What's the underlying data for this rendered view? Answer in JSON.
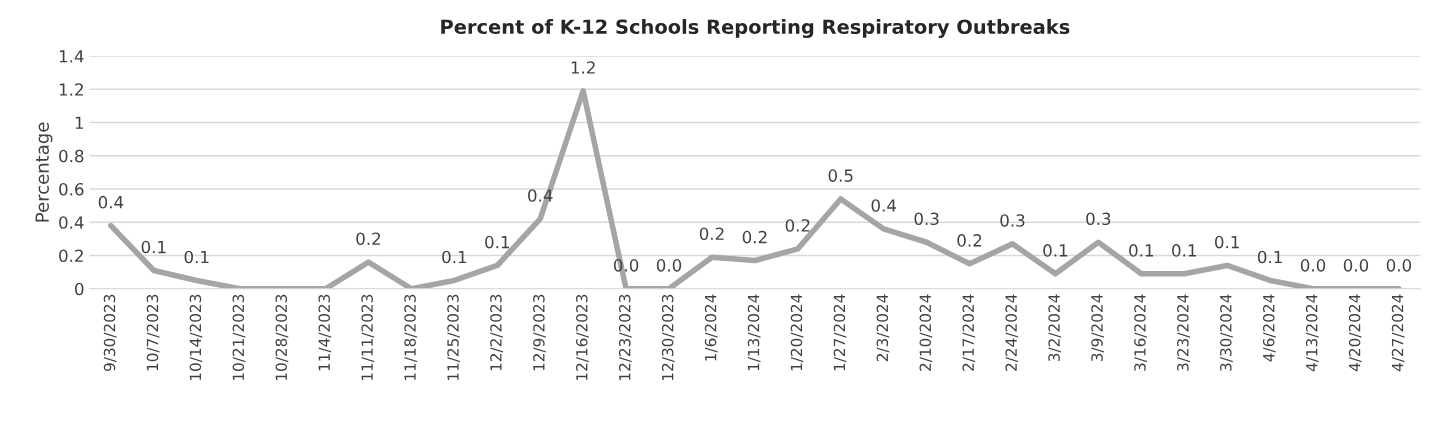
{
  "chart_data": {
    "type": "line",
    "title": "Percent of K-12 Schools Reporting Respiratory Outbreaks",
    "ylabel": "Percentage",
    "categories": [
      "9/30/2023",
      "10/7/2023",
      "10/14/2023",
      "10/21/2023",
      "10/28/2023",
      "11/4/2023",
      "11/11/2023",
      "11/18/2023",
      "11/25/2023",
      "12/2/2023",
      "12/9/2023",
      "12/16/2023",
      "12/23/2023",
      "12/30/2023",
      "1/6/2024",
      "1/13/2024",
      "1/20/2024",
      "1/27/2024",
      "2/3/2024",
      "2/10/2024",
      "2/17/2024",
      "2/24/2024",
      "3/2/2024",
      "3/9/2024",
      "3/16/2024",
      "3/23/2024",
      "3/30/2024",
      "4/6/2024",
      "4/13/2024",
      "4/20/2024",
      "4/27/2024"
    ],
    "series": [
      {
        "color": "#a5a5a5",
        "values": [
          0.38,
          0.11,
          0.05,
          0,
          0,
          0,
          0.16,
          0,
          0.05,
          0.14,
          0.42,
          1.19,
          0,
          0,
          0.19,
          0.17,
          0.24,
          0.54,
          0.36,
          0.28,
          0.15,
          0.27,
          0.09,
          0.28,
          0.09,
          0.09,
          0.14,
          0.05,
          0,
          0,
          0
        ],
        "value_labels": [
          "0.4",
          "0.1",
          "0.1",
          null,
          null,
          null,
          "0.2",
          null,
          "0.1",
          "0.1",
          "0.4",
          "1.2",
          "0.0",
          "0.0",
          "0.2",
          "0.2",
          "0.2",
          "0.5",
          "0.4",
          "0.3",
          "0.2",
          "0.3",
          "0.1",
          "0.3",
          "0.1",
          "0.1",
          "0.1",
          "0.1",
          "0.0",
          "0.0",
          "0.0"
        ]
      }
    ],
    "ylim": [
      0,
      1.4
    ],
    "yticks": [
      0,
      0.2,
      0.4,
      0.6,
      0.8,
      1,
      1.2,
      1.4
    ],
    "grid": "y",
    "legend": false,
    "marker": "none",
    "line_style": "solid"
  }
}
